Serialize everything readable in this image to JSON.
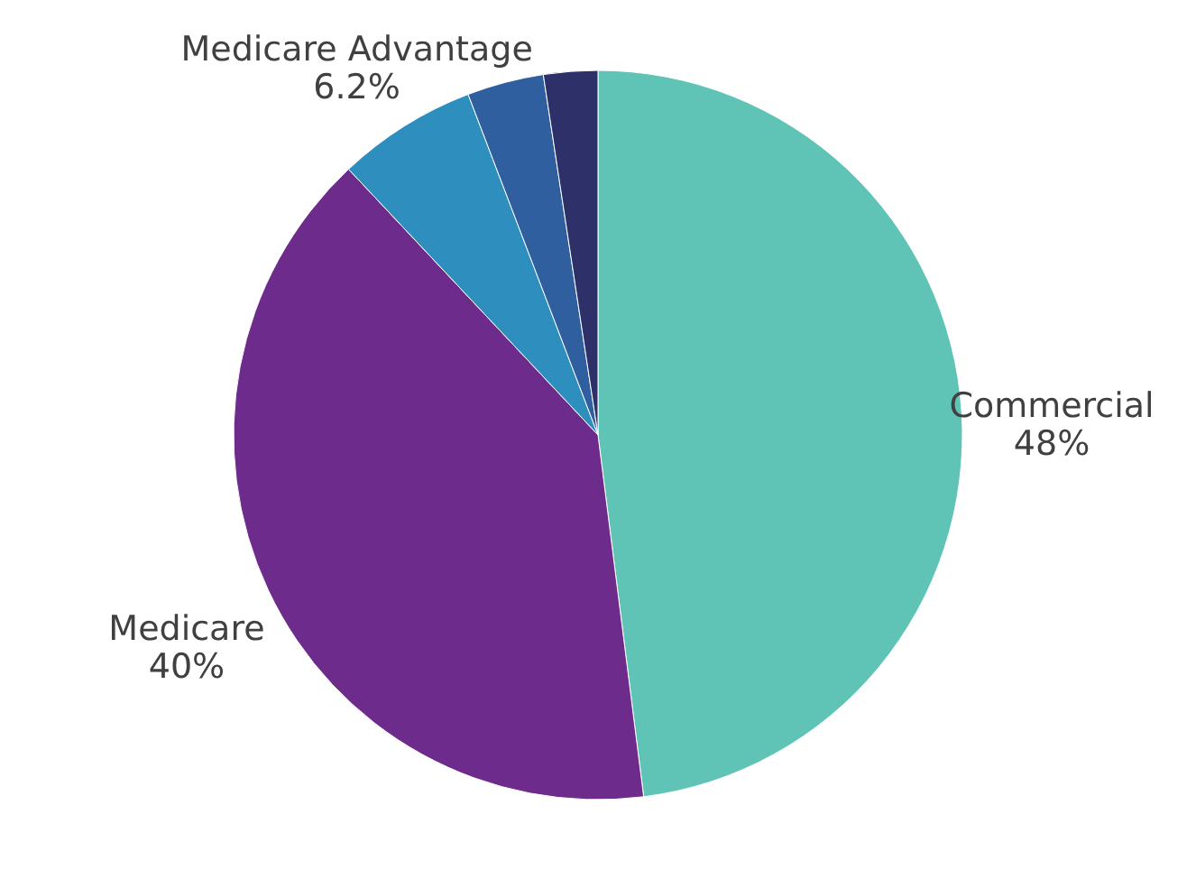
{
  "chart_data": {
    "type": "pie",
    "categories": [
      "Commercial",
      "Medicare",
      "Medicare Advantage",
      null,
      null
    ],
    "values": [
      48,
      40,
      6.2,
      3.4,
      2.4
    ],
    "value_labels": [
      "48%",
      "40%",
      "6.2%",
      null,
      null
    ],
    "colors": [
      "#5fc4b6",
      "#6d2b8c",
      "#2e8fbf",
      "#2f5f9e",
      "#2e3169"
    ]
  }
}
